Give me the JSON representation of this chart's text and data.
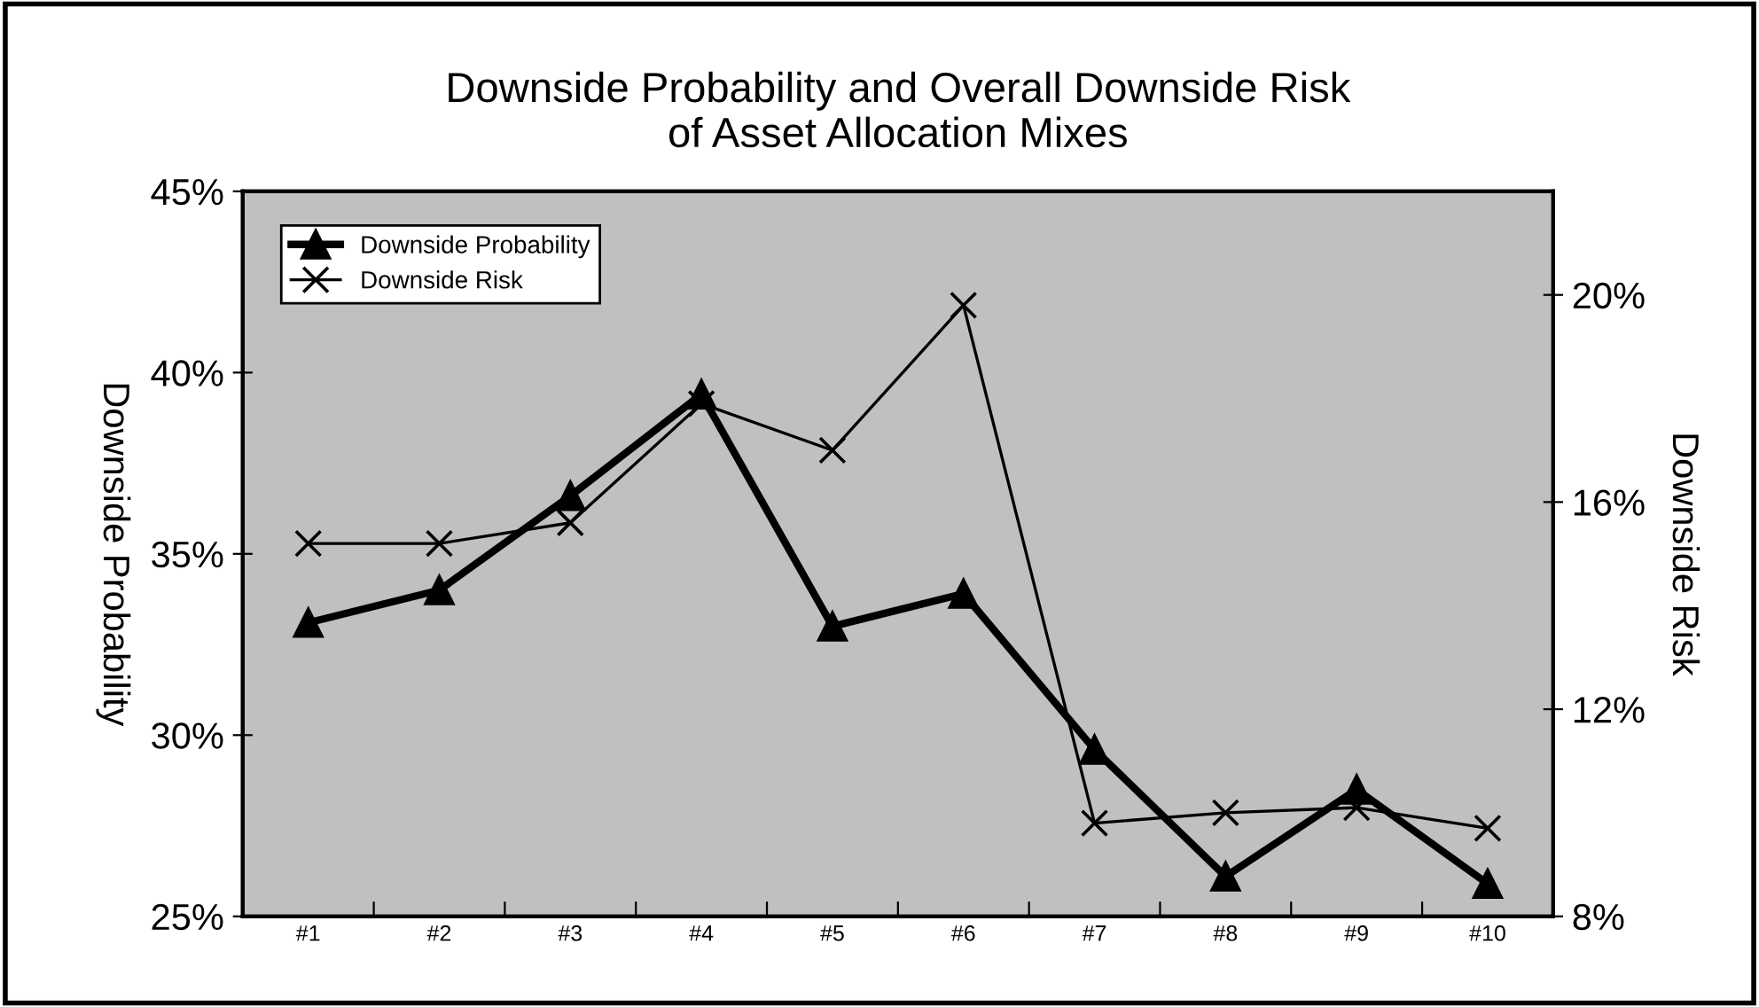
{
  "chart_data": {
    "type": "line",
    "title": "Downside Probability and Overall Downside Risk\nof Asset Allocation Mixes",
    "ylabel": "Downside Probability",
    "y2label": "Downside Risk",
    "categories": [
      "#1",
      "#2",
      "#3",
      "#4",
      "#5",
      "#6",
      "#7",
      "#8",
      "#9",
      "#10"
    ],
    "series": [
      {
        "name": "Downside Probability",
        "color": "#000000",
        "marker": "triangle",
        "line_style": "solid",
        "values": [
          33.1,
          34.0,
          36.6,
          39.4,
          33.0,
          33.9,
          29.6,
          26.1,
          28.5,
          25.9
        ]
      },
      {
        "name": "Downside Risk",
        "color": "#000000",
        "marker": "cross",
        "line_style": "solid",
        "axis": "y2",
        "values": [
          15.2,
          15.2,
          15.6,
          17.9,
          17.0,
          19.8,
          9.8,
          10.0,
          10.1,
          9.7
        ]
      }
    ],
    "ylim": [
      25,
      45
    ],
    "yticks": [
      {
        "value": 25,
        "label": "25%"
      },
      {
        "value": 30,
        "label": "30%"
      },
      {
        "value": 35,
        "label": "35%"
      },
      {
        "value": 40,
        "label": "40%"
      },
      {
        "value": 45,
        "label": "45%"
      }
    ],
    "y2lim": [
      8,
      22
    ],
    "y2ticks": [
      {
        "value": 8,
        "label": "8%"
      },
      {
        "value": 12,
        "label": "12%"
      },
      {
        "value": 16,
        "label": "16%"
      },
      {
        "value": 20,
        "label": "20%"
      }
    ],
    "grid": false,
    "legend": "top left"
  }
}
